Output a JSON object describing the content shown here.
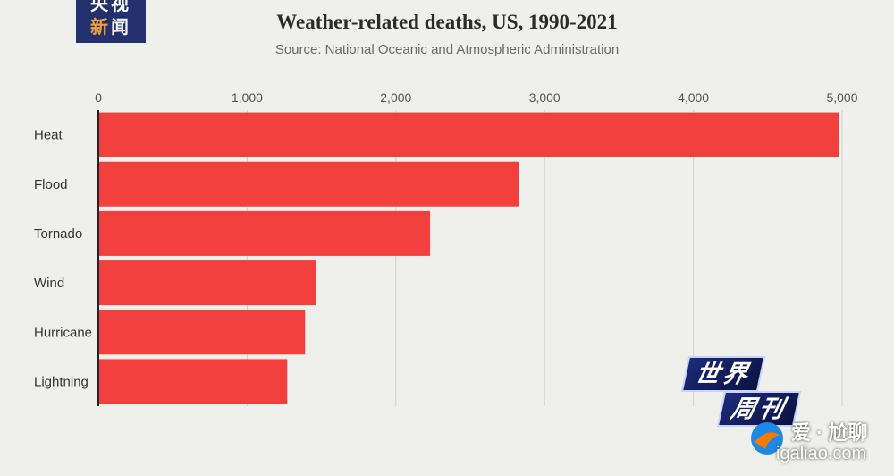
{
  "logo": {
    "line1": "央视",
    "line2a": "新",
    "line2b": "闻"
  },
  "chart_data": {
    "type": "bar",
    "orientation": "horizontal",
    "title": "Weather-related deaths, US, 1990-2021",
    "subtitle": "Source: National Oceanic and Atmospheric Administration",
    "categories": [
      "Heat",
      "Flood",
      "Tornado",
      "Wind",
      "Hurricane",
      "Lightning"
    ],
    "values": [
      4980,
      2830,
      2230,
      1460,
      1390,
      1270
    ],
    "xlim": [
      0,
      5000
    ],
    "ticks": [
      0,
      1000,
      2000,
      3000,
      4000,
      5000
    ],
    "tick_labels": [
      "0",
      "1,000",
      "2,000",
      "3,000",
      "4,000",
      "5,000"
    ],
    "grid": true,
    "axis_position": "top",
    "bar_color": "#f2403f",
    "xlabel": "",
    "ylabel": ""
  },
  "watermark": {
    "badge_line1": "世界",
    "badge_line2": "周刊",
    "site_name": "爱 · 尬聊",
    "site_url": "igaliao.com"
  }
}
